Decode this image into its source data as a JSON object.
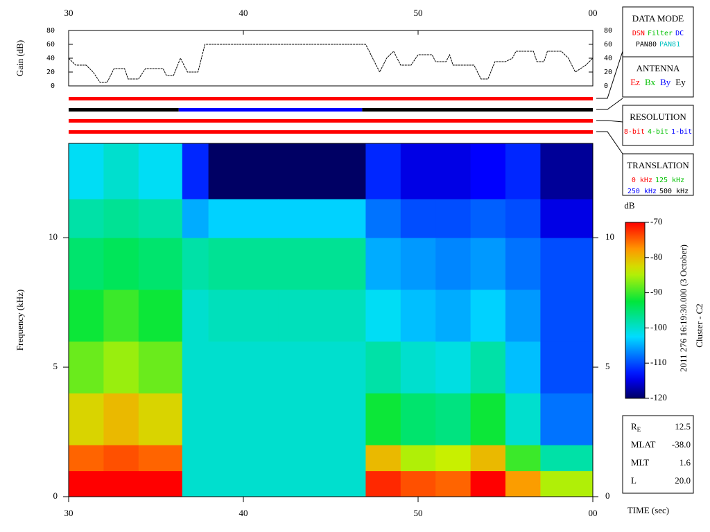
{
  "chart_data": [
    {
      "type": "line",
      "ylabel": "Gain (dB)",
      "color": "#000000",
      "x": [
        30,
        30.4,
        31,
        31.4,
        31.8,
        32.2,
        32.6,
        33.2,
        33.4,
        34,
        34.4,
        35.4,
        35.6,
        36,
        36.4,
        36.8,
        37.4,
        37.8,
        47,
        47.4,
        47.8,
        48.2,
        48.6,
        49,
        49.6,
        50,
        50.8,
        51,
        51.6,
        51.8,
        52,
        53.2,
        53.6,
        54,
        54.4,
        55,
        55.4,
        55.6,
        56.6,
        56.8,
        57.2,
        57.4,
        58.2,
        58.6,
        59,
        59.6,
        60
      ],
      "values": [
        40,
        30,
        30,
        20,
        5,
        5,
        25,
        25,
        10,
        10,
        25,
        25,
        15,
        15,
        40,
        20,
        20,
        60,
        60,
        40,
        20,
        40,
        50,
        30,
        30,
        45,
        45,
        35,
        35,
        45,
        30,
        30,
        10,
        10,
        35,
        35,
        40,
        50,
        50,
        35,
        35,
        50,
        50,
        40,
        20,
        30,
        40
      ],
      "xlim": [
        30,
        60
      ],
      "xticks": [
        30,
        40,
        50,
        {
          "value": 60,
          "label": "00"
        }
      ],
      "ylim": [
        0,
        80
      ],
      "yticks": [
        0,
        20,
        40,
        60,
        80
      ]
    },
    {
      "type": "status",
      "series": [
        {
          "segments": [
            {
              "start": 30,
              "end": 60,
              "color": "#ff0000"
            }
          ]
        },
        {
          "segments": [
            {
              "start": 30,
              "end": 36.3,
              "color": "#000000"
            },
            {
              "start": 36.3,
              "end": 46.8,
              "color": "#0000ff"
            },
            {
              "start": 46.8,
              "end": 60,
              "color": "#000000"
            }
          ]
        },
        {
          "segments": [
            {
              "start": 30,
              "end": 60,
              "color": "#ff0000"
            }
          ]
        },
        {
          "segments": [
            {
              "start": 30,
              "end": 60,
              "color": "#ff0000"
            }
          ]
        }
      ]
    },
    {
      "type": "heatmap",
      "xlabel": "TIME (sec)",
      "ylabel": "Frequency (kHz)",
      "x_edges": [
        30,
        32,
        34,
        36.5,
        38,
        40,
        42,
        44,
        47,
        49,
        51,
        53,
        55,
        57,
        60
      ],
      "y_edges": [
        0,
        1,
        2,
        4,
        6,
        8,
        10,
        11.5,
        13.64
      ],
      "values": [
        [
          -70,
          -75,
          -82,
          -88,
          -92,
          -95,
          -98,
          -102
        ],
        [
          -70,
          -74,
          -80,
          -86,
          -90,
          -94,
          -97,
          -100
        ],
        [
          -70,
          -75,
          -82,
          -88,
          -92,
          -95,
          -98,
          -102
        ],
        [
          -100,
          -100,
          -100,
          -100,
          -100,
          -98,
          -105,
          -112
        ],
        [
          -100,
          -100,
          -100,
          -100,
          -99,
          -97,
          -103,
          -120
        ],
        [
          -100,
          -100,
          -100,
          -100,
          -99,
          -97,
          -103,
          -120
        ],
        [
          -100,
          -100,
          -100,
          -100,
          -99,
          -97,
          -103,
          -120
        ],
        [
          -100,
          -100,
          -100,
          -100,
          -99,
          -97,
          -103,
          -120
        ],
        [
          -72,
          -80,
          -92,
          -98,
          -102,
          -105,
          -108,
          -112
        ],
        [
          -74,
          -85,
          -95,
          -100,
          -104,
          -106,
          -110,
          -115
        ],
        [
          -75,
          -84,
          -96,
          -101,
          -105,
          -107,
          -110,
          -115
        ],
        [
          -70,
          -80,
          -92,
          -98,
          -103,
          -106,
          -109,
          -114
        ],
        [
          -78,
          -90,
          -100,
          -104,
          -106,
          -108,
          -110,
          -112
        ],
        [
          -85,
          -98,
          -108,
          -110,
          -110,
          -110,
          -115,
          -118
        ]
      ],
      "xlim": [
        30,
        60
      ],
      "xticks": [
        30,
        40,
        50,
        {
          "value": 60,
          "label": "00"
        }
      ],
      "ylim": [
        0,
        13.64
      ],
      "yticks": [
        0,
        5,
        10
      ]
    },
    {
      "type": "colorbar",
      "title": "dB",
      "ylim": [
        -120,
        -70
      ],
      "yticks": [
        -70,
        -80,
        -90,
        -100,
        -110,
        -120
      ]
    }
  ],
  "legend_boxes": [
    {
      "title": "DATA MODE",
      "rows": [
        [
          {
            "text": "DSN",
            "color": "#ff0000"
          },
          {
            "text": "Filter",
            "color": "#00c000"
          },
          {
            "text": "DC",
            "color": "#0000ff"
          }
        ],
        [
          {
            "text": "PAN80",
            "color": "#000000"
          },
          {
            "text": "PAN81",
            "color": "#00c0c0"
          }
        ]
      ]
    },
    {
      "title": "ANTENNA",
      "rows": [
        [
          {
            "text": "Ez",
            "color": "#ff0000"
          },
          {
            "text": "Bx",
            "color": "#00c000"
          },
          {
            "text": "By",
            "color": "#0000ff"
          },
          {
            "text": "Ey",
            "color": "#000000"
          }
        ]
      ]
    },
    {
      "title": "RESOLUTION",
      "rows": [
        [
          {
            "text": "8-bit",
            "color": "#ff0000"
          },
          {
            "text": "4-bit",
            "color": "#00c000"
          },
          {
            "text": "1-bit",
            "color": "#0000ff"
          }
        ]
      ]
    },
    {
      "title": "TRANSLATION",
      "rows": [
        [
          {
            "text": "0 kHz",
            "color": "#ff0000"
          },
          {
            "text": "125 kHz",
            "color": "#00c000"
          }
        ],
        [
          {
            "text": "250 kHz",
            "color": "#0000ff"
          },
          {
            "text": "500 kHz",
            "color": "#000000"
          }
        ]
      ]
    }
  ],
  "info": [
    {
      "label": "R",
      "sub": "E",
      "value": "12.5"
    },
    {
      "label": "MLAT",
      "value": "-38.0"
    },
    {
      "label": "MLT",
      "value": "1.6"
    },
    {
      "label": "L",
      "value": "20.0"
    }
  ],
  "side_text": [
    "2011 276 16:19:30.000 (3 October)",
    "Cluster - C2"
  ]
}
